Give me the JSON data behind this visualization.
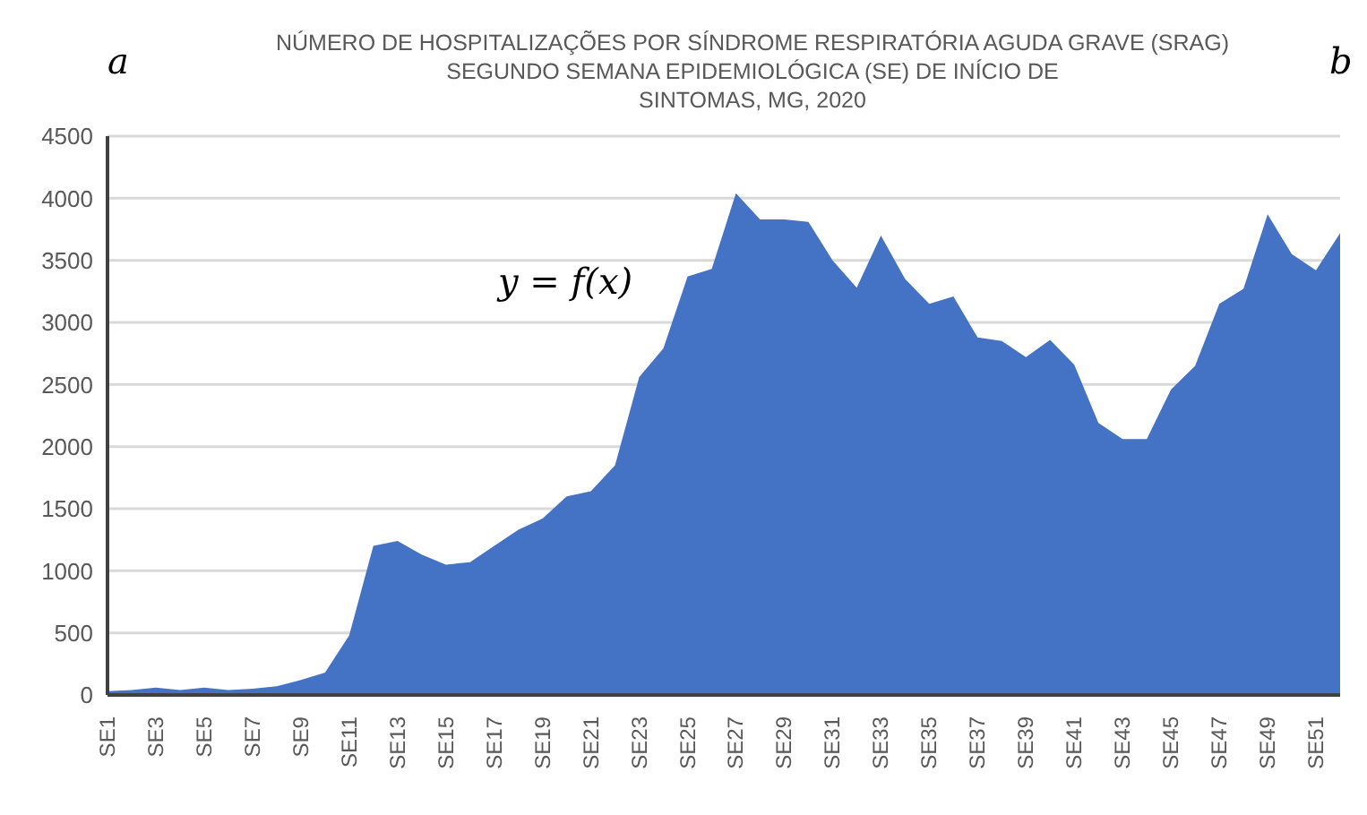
{
  "chart_data": {
    "type": "area",
    "title": "NÚMERO DE HOSPITALIZAÇÕES POR SÍNDROME RESPIRATÓRIA AGUDA GRAVE (SRAG)\nSEGUNDO SEMANA EPIDEMIOLÓGICA (SE) DE INÍCIO DE\nSINTOMAS, MG, 2020",
    "categories": [
      "SE1",
      null,
      "SE3",
      null,
      "SE5",
      null,
      "SE7",
      null,
      "SE9",
      null,
      "SE11",
      null,
      "SE13",
      null,
      "SE15",
      null,
      "SE17",
      null,
      "SE19",
      null,
      "SE21",
      null,
      "SE23",
      null,
      "SE25",
      null,
      "SE27",
      null,
      "SE29",
      null,
      "SE31",
      null,
      "SE33",
      null,
      "SE35",
      null,
      "SE37",
      null,
      "SE39",
      null,
      "SE41",
      null,
      "SE43",
      null,
      "SE45",
      null,
      "SE47",
      null,
      "SE49",
      null,
      "SE51",
      null
    ],
    "series": [
      {
        "color": "#4472c4",
        "values": [
          30,
          40,
          60,
          40,
          60,
          40,
          50,
          70,
          120,
          180,
          480,
          1200,
          1240,
          1130,
          1050,
          1070,
          1200,
          1330,
          1420,
          1600,
          1640,
          1850,
          2560,
          2790,
          3370,
          3430,
          4040,
          3830,
          3830,
          3810,
          3500,
          3280,
          3700,
          3350,
          3150,
          3210,
          2880,
          2850,
          2720,
          2860,
          2660,
          2190,
          2060,
          2060,
          2460,
          2650,
          3150,
          3270,
          3870,
          3550,
          3420,
          3720
        ]
      }
    ],
    "ylim": [
      0,
      4500
    ],
    "yticks": [
      0,
      500,
      1000,
      1500,
      2000,
      2500,
      3000,
      3500,
      4000,
      4500
    ],
    "grid": "y",
    "annotations": [
      "a",
      "y = f(x)",
      "b"
    ]
  }
}
